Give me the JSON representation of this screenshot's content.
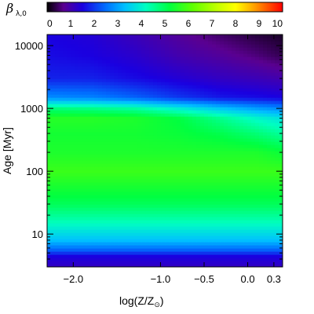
{
  "chart_data": {
    "type": "heatmap",
    "colorbar": {
      "label_symbol": "β",
      "label_subscript": "λ,0",
      "ticks": [
        "0",
        "1",
        "2",
        "3",
        "4",
        "5",
        "6",
        "7",
        "8",
        "9",
        "10"
      ],
      "range": [
        0,
        10
      ],
      "colormap": "rainbow"
    },
    "xlabel": "log(Z/Z",
    "xlabel_suffix_symbol": "⊙",
    "xlabel_close": ")",
    "ylabel": "Age [Myr]",
    "xlim": [
      -2.3,
      0.4
    ],
    "ylim": [
      3,
      15000
    ],
    "yscale": "log",
    "x_ticks": [
      {
        "value": -2.0,
        "label": "−2.0"
      },
      {
        "value": -1.0,
        "label": "−1.0"
      },
      {
        "value": -0.5,
        "label": "−0.5"
      },
      {
        "value": 0.0,
        "label": "0.0"
      },
      {
        "value": 0.3,
        "label": "0.3"
      }
    ],
    "y_ticks": [
      {
        "value": 10,
        "label": "10"
      },
      {
        "value": 100,
        "label": "100"
      },
      {
        "value": 1000,
        "label": "1000"
      },
      {
        "value": 10000,
        "label": "10000"
      }
    ],
    "bands": [
      {
        "age": 3,
        "values": [
          1.2,
          1.2,
          1.2,
          1.2,
          1.2,
          1.2,
          1.2
        ]
      },
      {
        "age": 4.5,
        "values": [
          1.5,
          1.5,
          1.5,
          1.5,
          1.5,
          1.5,
          1.5
        ]
      },
      {
        "age": 5.5,
        "values": [
          2.3,
          2.3,
          2.3,
          2.3,
          2.3,
          2.3,
          2.3
        ]
      },
      {
        "age": 8,
        "values": [
          3.3,
          3.3,
          3.3,
          3.3,
          3.3,
          3.3,
          3.3
        ]
      },
      {
        "age": 15,
        "values": [
          4.2,
          4.2,
          4.2,
          4.2,
          4.2,
          4.2,
          4.2
        ]
      },
      {
        "age": 30,
        "values": [
          5.0,
          5.0,
          5.0,
          5.0,
          5.0,
          5.0,
          5.0
        ]
      },
      {
        "age": 100,
        "values": [
          5.8,
          5.8,
          5.8,
          5.8,
          5.8,
          5.8,
          5.8
        ]
      },
      {
        "age": 200,
        "values": [
          5.5,
          5.5,
          5.5,
          5.5,
          5.5,
          5.5,
          5.3
        ]
      },
      {
        "age": 400,
        "values": [
          5.4,
          5.4,
          5.4,
          5.3,
          5.1,
          4.8,
          4.5
        ]
      },
      {
        "age": 700,
        "values": [
          5.6,
          5.6,
          5.5,
          5.2,
          4.6,
          4.1,
          3.8
        ]
      },
      {
        "age": 1000,
        "values": [
          4.8,
          4.7,
          4.5,
          4.0,
          3.4,
          3.0,
          2.8
        ]
      },
      {
        "age": 1500,
        "values": [
          2.8,
          2.7,
          2.4,
          2.0,
          1.7,
          1.6,
          1.5
        ]
      },
      {
        "age": 3000,
        "values": [
          1.8,
          1.8,
          1.6,
          1.4,
          1.2,
          1.1,
          1.0
        ]
      },
      {
        "age": 7000,
        "values": [
          1.6,
          1.5,
          1.3,
          1.0,
          0.8,
          0.6,
          0.4
        ]
      },
      {
        "age": 15000,
        "values": [
          1.5,
          1.4,
          1.1,
          0.8,
          0.5,
          0.3,
          0.2
        ]
      }
    ],
    "band_x": [
      -2.3,
      -1.8,
      -1.3,
      -0.8,
      -0.3,
      0.1,
      0.4
    ]
  }
}
